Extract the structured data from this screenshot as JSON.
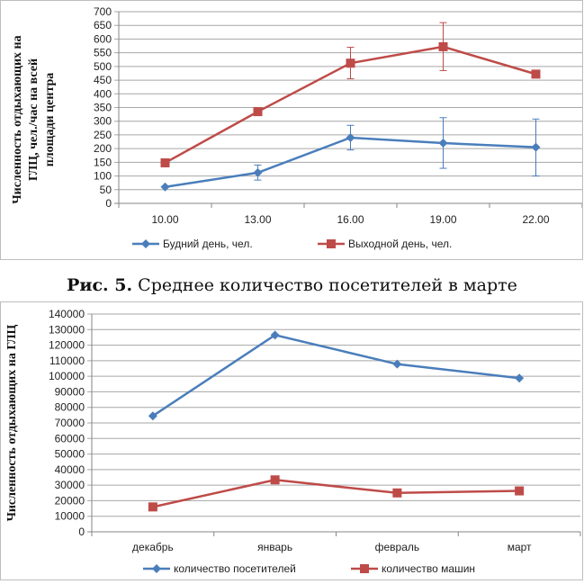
{
  "charts": [
    {
      "type": "line",
      "ylabel_lines": [
        "Численность отдыхающих на",
        "ГЛЦ, чел./час на всей",
        "площади центра"
      ],
      "categories": [
        "10.00",
        "13.00",
        "16.00",
        "19.00",
        "22.00"
      ],
      "y_ticks": [
        "0",
        "50",
        "100",
        "150",
        "200",
        "250",
        "300",
        "350",
        "400",
        "450",
        "500",
        "550",
        "600",
        "650",
        "700"
      ],
      "ylim": [
        0,
        700
      ],
      "series": [
        {
          "name": "Будний день, чел.",
          "color": "#4a7ebb",
          "marker": "diamond",
          "values": [
            60,
            112,
            240,
            220,
            205
          ],
          "err_low": [
            null,
            85,
            195,
            128,
            100
          ],
          "err_high": [
            null,
            140,
            285,
            313,
            308
          ]
        },
        {
          "name": "Выходной день, чел.",
          "color": "#be4b48",
          "marker": "square",
          "values": [
            148,
            335,
            512,
            572,
            472
          ],
          "err_low": [
            null,
            null,
            455,
            485,
            null
          ],
          "err_high": [
            null,
            null,
            570,
            660,
            null
          ]
        }
      ]
    },
    {
      "type": "line",
      "ylabel": "Численность отдыхающих на ГЛЦ",
      "categories": [
        "декабрь",
        "январь",
        "февраль",
        "март"
      ],
      "y_ticks": [
        "0",
        "10000",
        "20000",
        "30000",
        "40000",
        "50000",
        "60000",
        "70000",
        "80000",
        "90000",
        "100000",
        "110000",
        "120000",
        "130000",
        "140000"
      ],
      "ylim": [
        0,
        140000
      ],
      "series": [
        {
          "name": "количество посетителей",
          "color": "#4a7ebb",
          "marker": "diamond",
          "values": [
            74500,
            126500,
            107800,
            98800
          ]
        },
        {
          "name": "количество машин",
          "color": "#be4b48",
          "marker": "square",
          "values": [
            16000,
            33400,
            25000,
            26300
          ]
        }
      ]
    }
  ],
  "caption": {
    "prefix": "Рис. 5.",
    "text": " Среднее количество посетителей в марте"
  }
}
